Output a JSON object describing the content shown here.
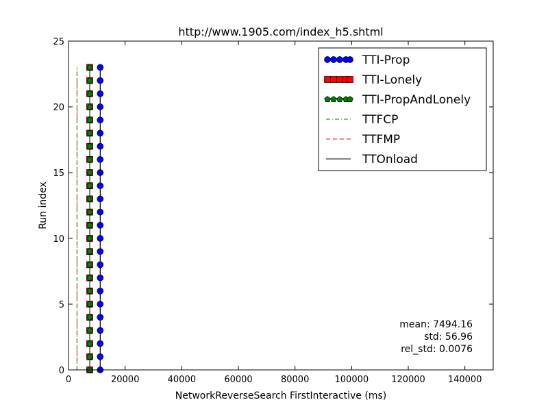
{
  "chart_data": {
    "type": "scatter",
    "title": "http://www.1905.com/index_h5.shtml",
    "xlabel": "NetworkReverseSearch FirstInteractive (ms)",
    "ylabel": "Run index",
    "xlim": [
      0,
      150000
    ],
    "ylim": [
      0,
      25
    ],
    "xticks": [
      0,
      20000,
      40000,
      60000,
      80000,
      100000,
      120000,
      140000
    ],
    "yticks": [
      0,
      5,
      10,
      15,
      20,
      25
    ],
    "run_index": [
      0,
      1,
      2,
      3,
      4,
      5,
      6,
      7,
      8,
      9,
      10,
      11,
      12,
      13,
      14,
      15,
      16,
      17,
      18,
      19,
      20,
      21,
      22,
      23
    ],
    "legend_position": "top-right",
    "grid": false,
    "series": [
      {
        "name": "TTI-Prop",
        "style": "line-marker",
        "marker": "circle",
        "color": "#0000ff",
        "line_color": "#000000",
        "x_constant": 11200
      },
      {
        "name": "TTI-Lonely",
        "style": "line-marker",
        "marker": "square",
        "color": "#ff0000",
        "line_color": "#000000",
        "x_constant": 7500
      },
      {
        "name": "TTI-PropAndLonely",
        "style": "line-marker",
        "marker": "pentagon",
        "color": "#008000",
        "line_color": "#000000",
        "x_constant": 7500
      },
      {
        "name": "TTFCP",
        "style": "dashdot",
        "color": "#008000",
        "x_constant": 3000
      },
      {
        "name": "TTFMP",
        "style": "dashed",
        "color": "#ff0000",
        "x_constant": 3000
      },
      {
        "name": "TTOnload",
        "style": "solid",
        "color": "#000000",
        "x_constant": 11200
      }
    ],
    "annotations": [
      "mean: 7494.16",
      "std: 56.96",
      "rel_std: 0.0076"
    ]
  }
}
